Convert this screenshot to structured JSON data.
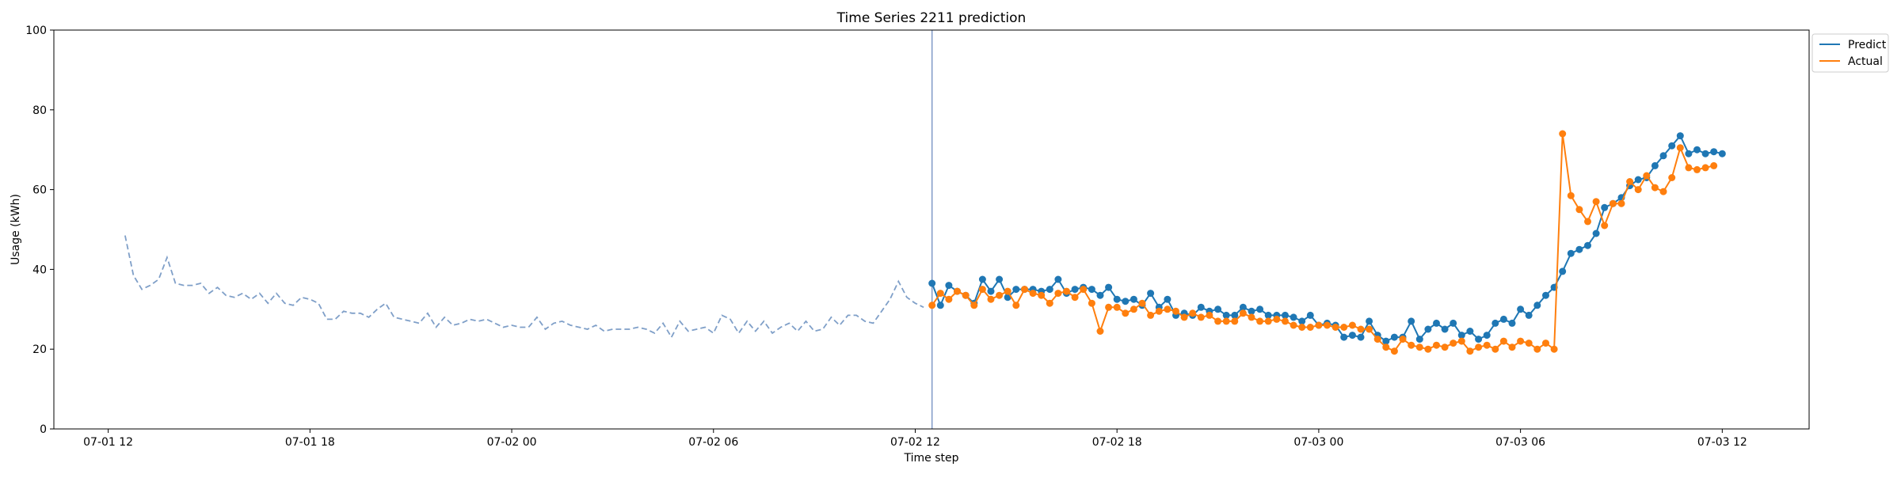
{
  "chart_data": {
    "type": "line",
    "title": "Time Series 2211 prediction",
    "xlabel": "Time step",
    "ylabel": "Usage (kWh)",
    "x_range": [
      "2023-07-01 10:23",
      "2023-07-03 14:35"
    ],
    "ylim": [
      0,
      100
    ],
    "x_ticks": [
      {
        "time": "2023-07-01 12:00",
        "label": "07-01 12"
      },
      {
        "time": "2023-07-01 18:00",
        "label": "07-01 18"
      },
      {
        "time": "2023-07-02 00:00",
        "label": "07-02 00"
      },
      {
        "time": "2023-07-02 06:00",
        "label": "07-02 06"
      },
      {
        "time": "2023-07-02 12:00",
        "label": "07-02 12"
      },
      {
        "time": "2023-07-02 18:00",
        "label": "07-02 18"
      },
      {
        "time": "2023-07-03 00:00",
        "label": "07-03 00"
      },
      {
        "time": "2023-07-03 06:00",
        "label": "07-03 06"
      },
      {
        "time": "2023-07-03 12:00",
        "label": "07-03 12"
      }
    ],
    "y_ticks": [
      0,
      20,
      40,
      60,
      80,
      100
    ],
    "grid": false,
    "legend": {
      "position": "outside-right-top",
      "entries": [
        "Predict",
        "Actual"
      ]
    },
    "vline": {
      "time": "2023-07-02 12:30",
      "color": "#4c72b0"
    },
    "history": {
      "start": "2023-07-01 12:30",
      "interval_minutes": 15,
      "color": "#7f9fc8",
      "style": "dashed",
      "values": [
        48.5,
        38.5,
        35.0,
        36.0,
        37.5,
        43.0,
        36.5,
        36.0,
        36.0,
        36.5,
        34.0,
        35.5,
        33.5,
        33.0,
        34.0,
        32.5,
        34.0,
        31.5,
        34.0,
        31.5,
        31.0,
        33.0,
        32.5,
        31.5,
        27.5,
        27.5,
        29.5,
        29.0,
        29.0,
        28.0,
        30.0,
        31.5,
        28.0,
        27.5,
        27.0,
        26.5,
        29.0,
        25.5,
        28.0,
        26.0,
        26.5,
        27.5,
        27.0,
        27.5,
        26.5,
        25.5,
        26.0,
        25.5,
        25.5,
        28.0,
        25.0,
        26.5,
        27.0,
        26.0,
        25.5,
        25.0,
        26.0,
        24.5,
        25.0,
        25.0,
        25.0,
        25.5,
        25.0,
        24.0,
        26.5,
        23.0,
        27.0,
        24.5,
        25.0,
        25.5,
        24.0,
        28.5,
        27.5,
        24.0,
        27.0,
        24.5,
        27.0,
        24.0,
        25.5,
        26.5,
        24.5,
        27.0,
        24.5,
        25.0,
        28.0,
        26.0,
        28.5,
        28.5,
        27.0,
        26.5,
        29.5,
        32.5,
        37.0,
        33.0,
        31.5,
        30.5
      ]
    },
    "series": [
      {
        "name": "Predict",
        "color": "#1f77b4",
        "start": "2023-07-02 12:30",
        "interval_minutes": 15,
        "values": [
          36.5,
          31.0,
          36.0,
          34.5,
          33.5,
          31.5,
          37.5,
          34.5,
          37.5,
          33.0,
          35.0,
          35.0,
          35.0,
          34.5,
          35.0,
          37.5,
          34.0,
          35.0,
          35.5,
          35.0,
          33.5,
          35.5,
          32.5,
          32.0,
          32.5,
          31.0,
          34.0,
          30.5,
          32.5,
          28.5,
          29.0,
          28.5,
          30.5,
          29.5,
          30.0,
          28.5,
          28.5,
          30.5,
          29.5,
          30.0,
          28.5,
          28.5,
          28.5,
          28.0,
          27.0,
          28.5,
          26.0,
          26.5,
          26.0,
          23.0,
          23.5,
          23.0,
          27.0,
          23.5,
          22.0,
          23.0,
          23.0,
          27.0,
          22.5,
          25.0,
          26.5,
          25.0,
          26.5,
          23.5,
          24.5,
          22.5,
          23.5,
          26.5,
          27.5,
          26.5,
          30.0,
          28.5,
          31.0,
          33.5,
          35.5,
          39.5,
          44.0,
          45.0,
          46.0,
          49.0,
          55.5,
          56.5,
          58.0,
          61.0,
          62.5,
          63.0,
          66.0,
          68.5,
          71.0,
          73.5,
          69.0,
          70.0,
          69.0,
          69.5,
          69.0
        ]
      },
      {
        "name": "Actual",
        "color": "#ff7f0e",
        "start": "2023-07-02 12:30",
        "interval_minutes": 15,
        "values": [
          31.0,
          34.0,
          32.5,
          34.5,
          33.5,
          31.0,
          35.0,
          32.5,
          33.5,
          34.5,
          31.0,
          35.0,
          34.0,
          33.5,
          31.5,
          34.0,
          34.5,
          33.0,
          35.0,
          31.5,
          24.5,
          30.5,
          30.5,
          29.0,
          30.0,
          31.5,
          28.5,
          29.5,
          30.0,
          29.5,
          28.0,
          29.0,
          28.0,
          28.5,
          27.0,
          27.0,
          27.0,
          29.0,
          28.0,
          27.0,
          27.0,
          27.5,
          27.0,
          26.0,
          25.5,
          25.5,
          26.0,
          26.0,
          25.5,
          25.5,
          26.0,
          25.0,
          25.0,
          22.5,
          20.5,
          19.5,
          22.5,
          21.0,
          20.5,
          20.0,
          21.0,
          20.5,
          21.5,
          22.0,
          19.5,
          20.5,
          21.0,
          20.0,
          22.0,
          20.5,
          22.0,
          21.5,
          20.0,
          21.5,
          20.0,
          74.0,
          58.5,
          55.0,
          52.0,
          57.0,
          51.0,
          56.5,
          56.5,
          62.0,
          60.0,
          63.5,
          60.5,
          59.5,
          63.0,
          70.5,
          65.5,
          65.0,
          65.5,
          66.0
        ]
      }
    ]
  }
}
